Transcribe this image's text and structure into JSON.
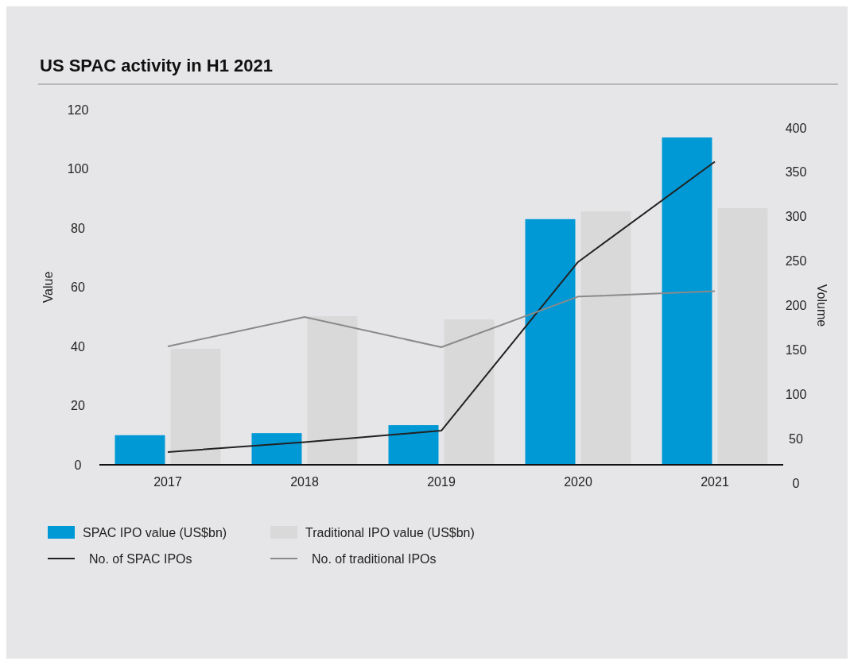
{
  "chart_data": {
    "type": "bar",
    "title": "US SPAC activity in H1 2021",
    "ylabel": "Value",
    "y2label": "Volume",
    "categories": [
      "2017",
      "2018",
      "2019",
      "2020",
      "2021"
    ],
    "series": [
      {
        "name": "SPAC IPO value (US$bn)",
        "color": "#0099d6",
        "values": [
          10,
          10.7,
          13.4,
          83,
          110.6
        ]
      },
      {
        "name": "Traditional IPO value (US$bn)",
        "color": "#d9d9d9",
        "values": [
          39.2,
          50.2,
          49.1,
          85.6,
          86.7
        ]
      },
      {
        "name": "No. of SPAC IPOs",
        "type": "line",
        "axis": "y2",
        "color": "#222222",
        "values": [
          35,
          46,
          59,
          249,
          362
        ]
      },
      {
        "name": "No. of traditional IPOs",
        "type": "line",
        "axis": "y2",
        "color": "#8a8a8a",
        "values": [
          154,
          187,
          153,
          210,
          216
        ]
      }
    ],
    "ylim": [
      0,
      120
    ],
    "yticks": [
      0,
      20,
      40,
      60,
      80,
      100,
      120
    ],
    "y2lim": [
      0,
      400
    ],
    "y2ticks": [
      0,
      50,
      100,
      150,
      200,
      250,
      300,
      350,
      400
    ],
    "grid": false,
    "legend": "bottom",
    "line_style": "solid",
    "marker": "none"
  }
}
